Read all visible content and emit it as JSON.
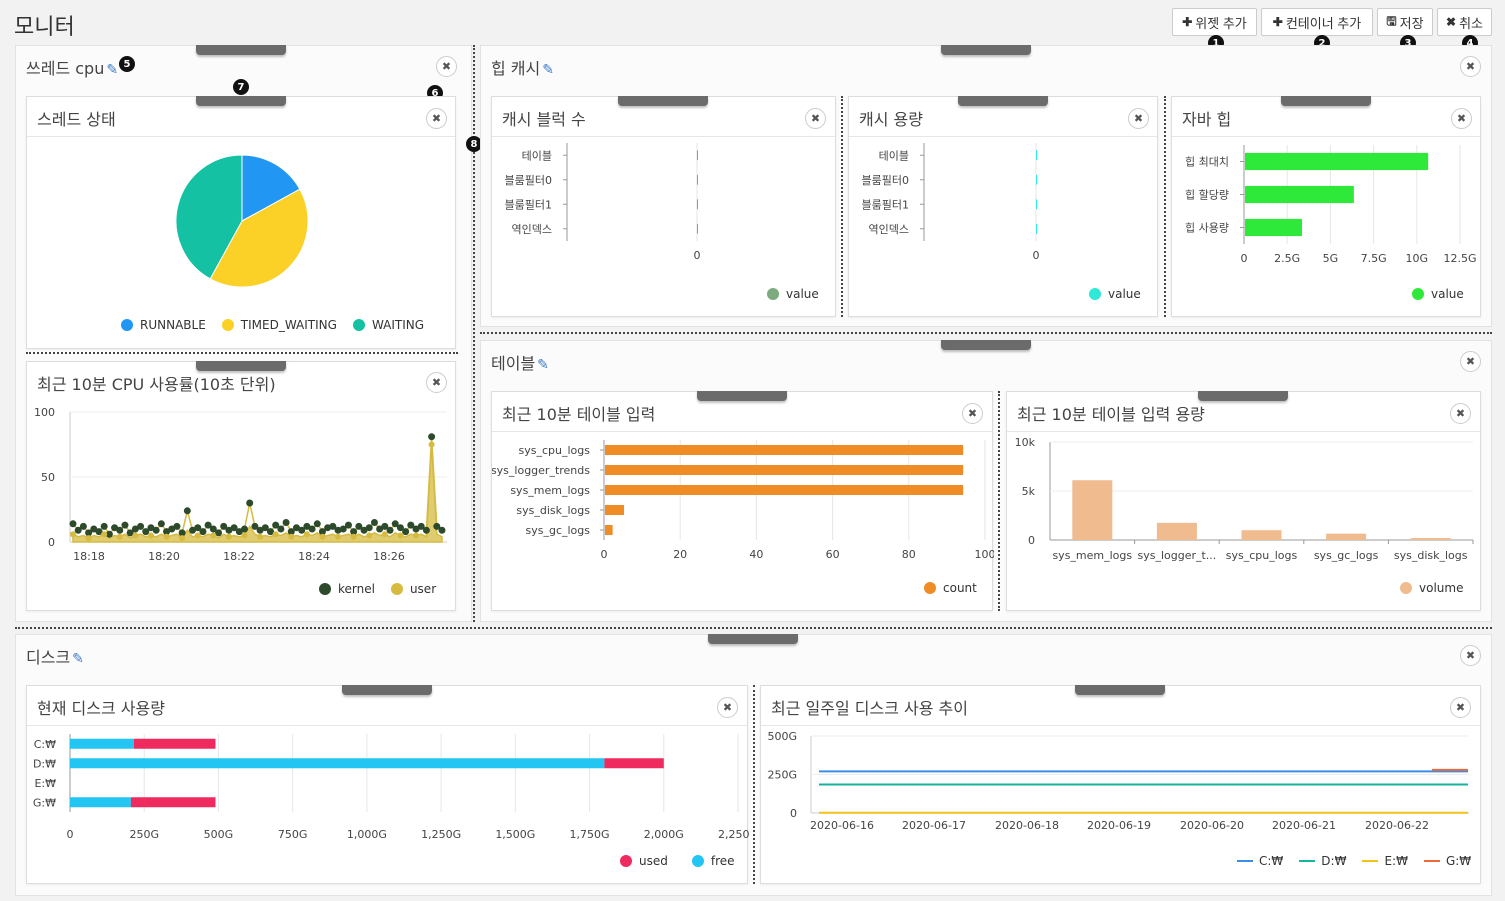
{
  "page": {
    "title": "모니터"
  },
  "toolbar": {
    "add_widget": "위젯 추가",
    "add_container": "컨테이너 추가",
    "save": "저장",
    "cancel": "취소"
  },
  "markers": [
    "1",
    "2",
    "3",
    "4",
    "5",
    "6",
    "7",
    "8"
  ],
  "containers": {
    "thread_cpu": {
      "title": "쓰레드 cpu"
    },
    "heap_cache": {
      "title": "힙 캐시"
    },
    "table": {
      "title": "테이블"
    },
    "disk": {
      "title": "디스크"
    }
  },
  "widgets": {
    "thread_state": {
      "title": "스레드 상태",
      "chart_data": {
        "type": "pie",
        "labels": [
          "RUNNABLE",
          "TIMED_WAITING",
          "WAITING"
        ],
        "values": [
          17,
          41,
          42
        ],
        "colors": [
          "#2196f3",
          "#fbd027",
          "#14c1a3"
        ],
        "legend": "bottom"
      }
    },
    "cpu_usage": {
      "title": "최근 10분 CPU 사용률(10초 단위)",
      "chart_data": {
        "type": "line",
        "x_ticks": [
          "18:18",
          "18:20",
          "18:22",
          "18:24",
          "18:26"
        ],
        "y_ticks": [
          "0",
          "50",
          "100"
        ],
        "ylim": [
          0,
          100
        ],
        "series": [
          {
            "name": "kernel",
            "color": "#2d4a2b",
            "values": [
              14,
              9,
              12,
              7,
              10,
              8,
              12,
              6,
              11,
              9,
              13,
              7,
              10,
              12,
              8,
              11,
              9,
              14,
              8,
              10,
              12,
              7,
              24,
              9,
              11,
              8,
              13,
              10,
              7,
              12,
              9,
              11,
              8,
              10,
              30,
              12,
              9,
              11,
              8,
              13,
              10,
              15,
              8,
              11,
              9,
              12,
              10,
              14,
              8,
              11,
              12,
              9,
              10,
              13,
              8,
              12,
              9,
              11,
              15,
              10,
              12,
              9,
              14,
              11,
              8,
              13,
              10,
              12,
              9,
              81,
              12,
              9
            ]
          },
          {
            "name": "user",
            "color": "#d6bb40",
            "values": [
              6,
              4,
              5,
              3,
              5,
              4,
              6,
              3,
              5,
              4,
              6,
              3,
              5,
              6,
              4,
              5,
              4,
              6,
              4,
              5,
              6,
              3,
              9,
              4,
              5,
              4,
              6,
              5,
              3,
              6,
              4,
              5,
              4,
              5,
              12,
              6,
              4,
              5,
              4,
              6,
              5,
              7,
              4,
              5,
              4,
              6,
              5,
              7,
              4,
              5,
              6,
              4,
              5,
              6,
              4,
              6,
              4,
              5,
              7,
              5,
              6,
              4,
              7,
              5,
              4,
              6,
              5,
              6,
              4,
              75,
              6,
              4
            ]
          }
        ],
        "legend": "bottom-right"
      }
    },
    "cache_blocks": {
      "title": "캐시 블럭 수",
      "chart_data": {
        "type": "bar",
        "orientation": "horizontal",
        "categories": [
          "테이블",
          "블룸필터0",
          "블룸필터1",
          "역인덱스"
        ],
        "values": [
          0,
          0,
          0,
          0
        ],
        "x_ticks": [
          "0"
        ],
        "series_name": "value",
        "color": "#7dab80"
      }
    },
    "cache_size": {
      "title": "캐시 용량",
      "chart_data": {
        "type": "bar",
        "orientation": "horizontal",
        "categories": [
          "테이블",
          "블룸필터0",
          "블룸필터1",
          "역인덱스"
        ],
        "values": [
          0,
          0,
          0,
          0
        ],
        "x_ticks": [
          "0"
        ],
        "series_name": "value",
        "color": "#2ee8d8"
      }
    },
    "java_heap": {
      "title": "자바 힙",
      "chart_data": {
        "type": "bar",
        "orientation": "horizontal",
        "categories": [
          "힙 최대치",
          "힙 할당량",
          "힙 사용량"
        ],
        "values": [
          10.6,
          6.3,
          3.3
        ],
        "x_ticks": [
          "0",
          "2.5G",
          "5G",
          "7.5G",
          "10G",
          "12.5G"
        ],
        "xlim": [
          0,
          12.5
        ],
        "series_name": "value",
        "color": "#2ee83a"
      }
    },
    "table_input": {
      "title": "최근 10분 테이블 입력",
      "chart_data": {
        "type": "bar",
        "orientation": "horizontal",
        "categories": [
          "sys_cpu_logs",
          "sys_logger_trends",
          "sys_mem_logs",
          "sys_disk_logs",
          "sys_gc_logs"
        ],
        "values": [
          94,
          94,
          94,
          5,
          2
        ],
        "x_ticks": [
          "0",
          "20",
          "40",
          "60",
          "80",
          "100"
        ],
        "xlim": [
          0,
          100
        ],
        "series_name": "count",
        "color": "#f08c25"
      }
    },
    "table_input_size": {
      "title": "최근 10분 테이블 입력 용량",
      "chart_data": {
        "type": "bar",
        "categories": [
          "sys_mem_logs",
          "sys_logger_t...",
          "sys_cpu_logs",
          "sys_gc_logs",
          "sys_disk_logs"
        ],
        "values": [
          6100,
          1750,
          1000,
          650,
          200
        ],
        "y_ticks": [
          "0",
          "5k",
          "10k"
        ],
        "ylim": [
          0,
          10000
        ],
        "series_name": "volume",
        "color": "#efbb8f"
      }
    },
    "disk_current": {
      "title": "현재 디스크 사용량",
      "chart_data": {
        "type": "bar",
        "orientation": "horizontal",
        "stacked": true,
        "categories": [
          "C:₩",
          "D:₩",
          "E:₩",
          "G:₩"
        ],
        "x_ticks": [
          "0",
          "250G",
          "500G",
          "750G",
          "1,000G",
          "1,250G",
          "1,500G",
          "1,750G",
          "2,000G",
          "2,250G"
        ],
        "xlim": [
          0,
          2250
        ],
        "series": [
          {
            "name": "free",
            "color": "#23c6f2",
            "values": [
              215,
              1800,
              0,
              205
            ]
          },
          {
            "name": "used",
            "color": "#ee2a5f",
            "values": [
              275,
              200,
              0,
              285
            ]
          }
        ],
        "legend_order": [
          "used",
          "free"
        ]
      }
    },
    "disk_week": {
      "title": "최근 일주일 디스크 사용 추이",
      "chart_data": {
        "type": "line",
        "x_ticks": [
          "2020-06-16",
          "2020-06-17",
          "2020-06-18",
          "2020-06-19",
          "2020-06-20",
          "2020-06-21",
          "2020-06-22"
        ],
        "y_ticks": [
          "0",
          "250G",
          "500G"
        ],
        "ylim": [
          0,
          500
        ],
        "series": [
          {
            "name": "C:₩",
            "color": "#3a8ee6",
            "values": [
              270,
              270,
              270,
              270,
              270,
              270,
              270,
              270
            ]
          },
          {
            "name": "D:₩",
            "color": "#17b39a",
            "values": [
              185,
              185,
              185,
              185,
              185,
              185,
              185,
              185
            ]
          },
          {
            "name": "E:₩",
            "color": "#f0c419",
            "values": [
              2,
              2,
              2,
              2,
              2,
              2,
              2,
              2
            ]
          },
          {
            "name": "G:₩",
            "color": "#ef6a3a",
            "values": [
              null,
              null,
              null,
              null,
              null,
              null,
              null,
              280
            ]
          }
        ]
      }
    }
  }
}
